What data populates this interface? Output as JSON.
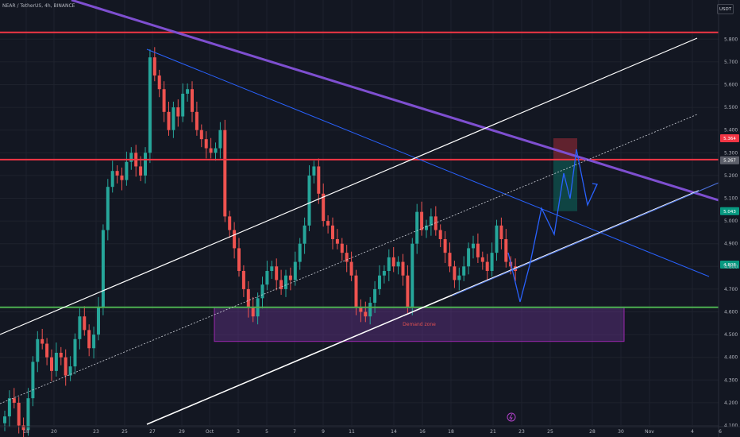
{
  "header": {
    "title": "NEAR / TetherUS, 4h, BINANCE",
    "currency": "USDT"
  },
  "colors": {
    "background": "#131722",
    "bull": "#26a69a",
    "bear": "#ef5350",
    "resistance": "#f23645",
    "support": "#4caf50",
    "trendline": "#7e4fd0",
    "channel": "#ffffff",
    "projection": "#2962ff",
    "demand_zone": "#7b3aa6"
  },
  "chart_data": {
    "type": "candlestick",
    "timeframe": "4h",
    "x_tick_labels": [
      "18",
      "20",
      "23",
      "25",
      "27",
      "29",
      "Oct",
      "3",
      "5",
      "7",
      "9",
      "11",
      "14",
      "16",
      "18",
      "21",
      "23",
      "25",
      "28",
      "30",
      "Nov",
      "4",
      "6"
    ],
    "y_tick_labels": [
      "4.100",
      "4.200",
      "4.300",
      "4.400",
      "4.500",
      "4.600",
      "4.700",
      "4.800",
      "4.900",
      "5.000",
      "5.100",
      "5.200",
      "5.300",
      "5.400",
      "5.500",
      "5.600",
      "5.700",
      "5.800"
    ],
    "ylim": [
      4.06,
      5.86
    ],
    "price_tags": [
      {
        "label": "5.364",
        "value": 5.364,
        "color": "#f23645"
      },
      {
        "label": "5.267",
        "value": 5.267,
        "color": "#5d606b"
      },
      {
        "label": "5.043",
        "value": 5.043,
        "color": "#089981"
      },
      {
        "label": "4.808",
        "value": 4.808,
        "color": "#089981"
      }
    ],
    "horizontal_levels": [
      {
        "value": 5.83,
        "color": "#f23645"
      },
      {
        "value": 5.27,
        "color": "#f23645"
      },
      {
        "value": 4.62,
        "color": "#4caf50"
      }
    ],
    "demand_zone": {
      "label": "Demand zone",
      "top": 4.62,
      "bottom": 4.47
    },
    "trade_box": {
      "stop_top": 5.364,
      "entry": 5.267,
      "target": 5.043
    },
    "close_series": [
      4.14,
      4.22,
      4.2,
      4.1,
      4.08,
      4.22,
      4.38,
      4.48,
      4.46,
      4.4,
      4.34,
      4.42,
      4.4,
      4.32,
      4.36,
      4.48,
      4.58,
      4.52,
      4.44,
      4.5,
      4.62,
      4.96,
      5.15,
      5.22,
      5.2,
      5.18,
      5.26,
      5.3,
      5.24,
      5.2,
      5.3,
      5.72,
      5.64,
      5.58,
      5.48,
      5.4,
      5.5,
      5.46,
      5.56,
      5.58,
      5.48,
      5.4,
      5.36,
      5.32,
      5.3,
      5.32,
      5.4,
      5.02,
      4.96,
      4.88,
      4.78,
      4.7,
      4.62,
      4.58,
      4.66,
      4.72,
      4.78,
      4.8,
      4.74,
      4.7,
      4.76,
      4.74,
      4.82,
      4.9,
      4.98,
      5.2,
      5.24,
      5.12,
      5.0,
      4.98,
      4.92,
      4.9,
      4.86,
      4.82,
      4.76,
      4.62,
      4.6,
      4.58,
      4.64,
      4.7,
      4.76,
      4.78,
      4.84,
      4.8,
      4.82,
      4.76,
      4.62,
      4.9,
      5.04,
      4.96,
      4.98,
      5.02,
      4.96,
      4.92,
      4.86,
      4.8,
      4.74,
      4.76,
      4.8,
      4.88,
      4.9,
      4.84,
      4.82,
      4.78,
      4.86,
      4.98,
      4.92,
      4.82,
      4.8,
      4.78
    ]
  }
}
